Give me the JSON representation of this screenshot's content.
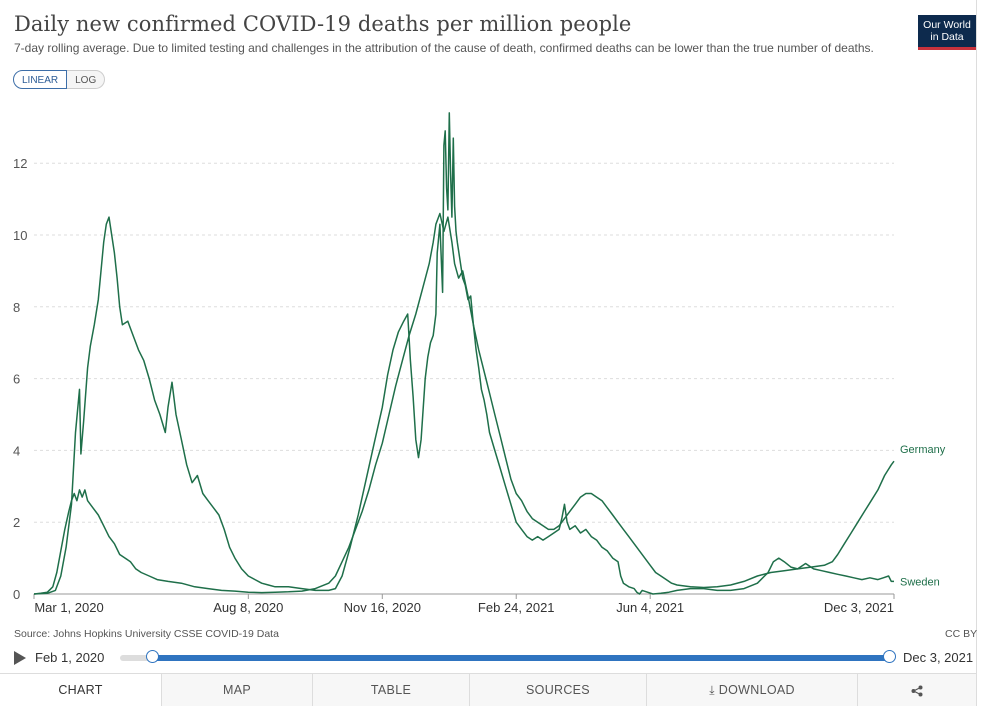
{
  "header": {
    "title": "Daily new confirmed COVID-19 deaths per million people",
    "subtitle": "7-day rolling average. Due to limited testing and challenges in the attribution of the cause of death, confirmed deaths can be lower than the true number of deaths.",
    "logo_line1": "Our World",
    "logo_line2": "in Data"
  },
  "scale_toggle": {
    "linear": "LINEAR",
    "log": "LOG"
  },
  "footer": {
    "source": "Source: Johns Hopkins University CSSE COVID-19 Data",
    "license": "CC BY"
  },
  "timeline": {
    "start_label": "Feb 1, 2020",
    "end_label": "Dec 3, 2021",
    "start_fraction": 0.042,
    "end_fraction": 1.0
  },
  "tabs": {
    "chart": "CHART",
    "map": "MAP",
    "table": "TABLE",
    "sources": "SOURCES",
    "download": "DOWNLOAD"
  },
  "colors": {
    "line": "#1f6f4a",
    "accent": "#2f74c0",
    "logo_bg": "#0d2a4d",
    "logo_bar": "#c8323c"
  },
  "chart_data": {
    "type": "line",
    "title": "Daily new confirmed COVID-19 deaths per million people",
    "xlabel": "",
    "ylabel": "",
    "x_ticks": [
      "Mar 1, 2020",
      "Aug 8, 2020",
      "Nov 16, 2020",
      "Feb 24, 2021",
      "Jun 4, 2021",
      "Dec 3, 2021"
    ],
    "y_ticks": [
      0,
      2,
      4,
      6,
      8,
      10,
      12
    ],
    "ylim": [
      0,
      13.5
    ],
    "x_unit": "days since Mar 1, 2020",
    "xlim": [
      0,
      642
    ],
    "series": [
      {
        "name": "Germany",
        "points": [
          [
            0,
            0
          ],
          [
            5,
            0.02
          ],
          [
            10,
            0.05
          ],
          [
            14,
            0.2
          ],
          [
            17,
            0.6
          ],
          [
            20,
            1.2
          ],
          [
            23,
            1.8
          ],
          [
            26,
            2.3
          ],
          [
            28,
            2.6
          ],
          [
            30,
            2.8
          ],
          [
            32,
            2.6
          ],
          [
            34,
            2.9
          ],
          [
            36,
            2.7
          ],
          [
            38,
            2.9
          ],
          [
            40,
            2.6
          ],
          [
            44,
            2.4
          ],
          [
            48,
            2.2
          ],
          [
            52,
            1.9
          ],
          [
            56,
            1.6
          ],
          [
            60,
            1.4
          ],
          [
            64,
            1.1
          ],
          [
            68,
            1.0
          ],
          [
            72,
            0.9
          ],
          [
            76,
            0.7
          ],
          [
            80,
            0.6
          ],
          [
            86,
            0.5
          ],
          [
            92,
            0.4
          ],
          [
            100,
            0.35
          ],
          [
            110,
            0.3
          ],
          [
            120,
            0.2
          ],
          [
            130,
            0.15
          ],
          [
            140,
            0.1
          ],
          [
            150,
            0.08
          ],
          [
            160,
            0.05
          ],
          [
            170,
            0.04
          ],
          [
            180,
            0.05
          ],
          [
            190,
            0.06
          ],
          [
            200,
            0.08
          ],
          [
            210,
            0.15
          ],
          [
            220,
            0.3
          ],
          [
            225,
            0.5
          ],
          [
            230,
            0.9
          ],
          [
            235,
            1.3
          ],
          [
            240,
            1.8
          ],
          [
            245,
            2.3
          ],
          [
            250,
            2.9
          ],
          [
            255,
            3.6
          ],
          [
            260,
            4.2
          ],
          [
            265,
            5.0
          ],
          [
            270,
            5.8
          ],
          [
            275,
            6.5
          ],
          [
            280,
            7.2
          ],
          [
            285,
            7.8
          ],
          [
            290,
            8.5
          ],
          [
            295,
            9.2
          ],
          [
            298,
            9.8
          ],
          [
            300,
            10.3
          ],
          [
            303,
            10.6
          ],
          [
            306,
            10.1
          ],
          [
            309,
            10.5
          ],
          [
            312,
            9.8
          ],
          [
            314,
            9.2
          ],
          [
            317,
            8.8
          ],
          [
            320,
            9.0
          ],
          [
            324,
            8.3
          ],
          [
            328,
            7.5
          ],
          [
            332,
            6.8
          ],
          [
            336,
            6.2
          ],
          [
            340,
            5.6
          ],
          [
            344,
            5.0
          ],
          [
            348,
            4.4
          ],
          [
            352,
            3.8
          ],
          [
            356,
            3.2
          ],
          [
            360,
            2.8
          ],
          [
            364,
            2.6
          ],
          [
            368,
            2.3
          ],
          [
            372,
            2.1
          ],
          [
            376,
            2.0
          ],
          [
            380,
            1.9
          ],
          [
            384,
            1.8
          ],
          [
            388,
            1.8
          ],
          [
            392,
            1.9
          ],
          [
            396,
            2.1
          ],
          [
            400,
            2.3
          ],
          [
            404,
            2.5
          ],
          [
            408,
            2.7
          ],
          [
            412,
            2.8
          ],
          [
            416,
            2.8
          ],
          [
            420,
            2.7
          ],
          [
            424,
            2.6
          ],
          [
            428,
            2.4
          ],
          [
            432,
            2.2
          ],
          [
            436,
            2.0
          ],
          [
            440,
            1.8
          ],
          [
            444,
            1.6
          ],
          [
            448,
            1.4
          ],
          [
            452,
            1.2
          ],
          [
            456,
            1.0
          ],
          [
            460,
            0.8
          ],
          [
            464,
            0.6
          ],
          [
            468,
            0.5
          ],
          [
            472,
            0.4
          ],
          [
            476,
            0.3
          ],
          [
            480,
            0.25
          ],
          [
            490,
            0.2
          ],
          [
            500,
            0.18
          ],
          [
            510,
            0.2
          ],
          [
            520,
            0.25
          ],
          [
            530,
            0.35
          ],
          [
            540,
            0.5
          ],
          [
            550,
            0.6
          ],
          [
            560,
            0.65
          ],
          [
            570,
            0.7
          ],
          [
            580,
            0.75
          ],
          [
            590,
            0.8
          ],
          [
            596,
            0.9
          ],
          [
            600,
            1.1
          ],
          [
            605,
            1.4
          ],
          [
            610,
            1.7
          ],
          [
            615,
            2.0
          ],
          [
            620,
            2.3
          ],
          [
            625,
            2.6
          ],
          [
            630,
            2.9
          ],
          [
            635,
            3.3
          ],
          [
            640,
            3.6
          ],
          [
            642,
            3.7
          ]
        ]
      },
      {
        "name": "Sweden",
        "points": [
          [
            0,
            0
          ],
          [
            10,
            0.02
          ],
          [
            16,
            0.1
          ],
          [
            20,
            0.5
          ],
          [
            24,
            1.3
          ],
          [
            28,
            2.5
          ],
          [
            31,
            4.5
          ],
          [
            34,
            5.7
          ],
          [
            35,
            3.9
          ],
          [
            37,
            4.8
          ],
          [
            40,
            6.3
          ],
          [
            42,
            6.9
          ],
          [
            45,
            7.5
          ],
          [
            48,
            8.2
          ],
          [
            50,
            9.0
          ],
          [
            52,
            9.8
          ],
          [
            54,
            10.3
          ],
          [
            56,
            10.5
          ],
          [
            58,
            10.0
          ],
          [
            60,
            9.5
          ],
          [
            62,
            8.8
          ],
          [
            64,
            8.0
          ],
          [
            66,
            7.5
          ],
          [
            70,
            7.6
          ],
          [
            74,
            7.2
          ],
          [
            78,
            6.8
          ],
          [
            82,
            6.5
          ],
          [
            86,
            6.0
          ],
          [
            90,
            5.4
          ],
          [
            94,
            5.0
          ],
          [
            98,
            4.5
          ],
          [
            100,
            5.2
          ],
          [
            103,
            5.9
          ],
          [
            106,
            5.0
          ],
          [
            110,
            4.3
          ],
          [
            114,
            3.6
          ],
          [
            118,
            3.1
          ],
          [
            122,
            3.3
          ],
          [
            126,
            2.8
          ],
          [
            130,
            2.6
          ],
          [
            134,
            2.4
          ],
          [
            138,
            2.2
          ],
          [
            142,
            1.8
          ],
          [
            146,
            1.3
          ],
          [
            150,
            1.0
          ],
          [
            155,
            0.7
          ],
          [
            160,
            0.5
          ],
          [
            165,
            0.4
          ],
          [
            170,
            0.3
          ],
          [
            175,
            0.25
          ],
          [
            180,
            0.2
          ],
          [
            190,
            0.2
          ],
          [
            200,
            0.15
          ],
          [
            210,
            0.1
          ],
          [
            220,
            0.1
          ],
          [
            225,
            0.15
          ],
          [
            230,
            0.5
          ],
          [
            236,
            1.3
          ],
          [
            242,
            2.2
          ],
          [
            248,
            3.2
          ],
          [
            254,
            4.2
          ],
          [
            260,
            5.2
          ],
          [
            264,
            6.1
          ],
          [
            268,
            6.8
          ],
          [
            272,
            7.3
          ],
          [
            276,
            7.6
          ],
          [
            279,
            7.8
          ],
          [
            281,
            6.5
          ],
          [
            283,
            5.5
          ],
          [
            285,
            4.3
          ],
          [
            287,
            3.8
          ],
          [
            289,
            4.3
          ],
          [
            292,
            6.0
          ],
          [
            294,
            6.6
          ],
          [
            296,
            7.0
          ],
          [
            298,
            7.2
          ],
          [
            300,
            7.8
          ],
          [
            301,
            9.5
          ],
          [
            303,
            10.3
          ],
          [
            305,
            8.4
          ],
          [
            306,
            12.5
          ],
          [
            307,
            12.9
          ],
          [
            308,
            11.3
          ],
          [
            309,
            10.7
          ],
          [
            310,
            13.4
          ],
          [
            311,
            11.7
          ],
          [
            312,
            10.5
          ],
          [
            313,
            12.7
          ],
          [
            314,
            10.8
          ],
          [
            315,
            10.1
          ],
          [
            316,
            9.8
          ],
          [
            318,
            9.3
          ],
          [
            320,
            8.8
          ],
          [
            322,
            8.6
          ],
          [
            324,
            8.2
          ],
          [
            326,
            8.3
          ],
          [
            328,
            7.5
          ],
          [
            330,
            6.8
          ],
          [
            332,
            6.3
          ],
          [
            334,
            5.7
          ],
          [
            336,
            5.4
          ],
          [
            338,
            5.0
          ],
          [
            340,
            4.5
          ],
          [
            344,
            4.0
          ],
          [
            348,
            3.5
          ],
          [
            352,
            3.0
          ],
          [
            356,
            2.5
          ],
          [
            360,
            2.0
          ],
          [
            364,
            1.8
          ],
          [
            368,
            1.6
          ],
          [
            372,
            1.5
          ],
          [
            376,
            1.6
          ],
          [
            380,
            1.5
          ],
          [
            384,
            1.6
          ],
          [
            388,
            1.7
          ],
          [
            392,
            1.8
          ],
          [
            394,
            2.1
          ],
          [
            396,
            2.5
          ],
          [
            398,
            2.0
          ],
          [
            400,
            1.8
          ],
          [
            404,
            1.9
          ],
          [
            408,
            1.7
          ],
          [
            412,
            1.8
          ],
          [
            416,
            1.6
          ],
          [
            420,
            1.5
          ],
          [
            424,
            1.3
          ],
          [
            428,
            1.2
          ],
          [
            432,
            1.0
          ],
          [
            436,
            0.9
          ],
          [
            438,
            0.5
          ],
          [
            440,
            0.3
          ],
          [
            444,
            0.2
          ],
          [
            448,
            0.15
          ],
          [
            450,
            0.05
          ],
          [
            452,
            0.0
          ],
          [
            454,
            0.1
          ],
          [
            458,
            0.05
          ],
          [
            462,
            0.0
          ],
          [
            468,
            0.02
          ],
          [
            474,
            0.05
          ],
          [
            480,
            0.1
          ],
          [
            490,
            0.15
          ],
          [
            500,
            0.15
          ],
          [
            510,
            0.1
          ],
          [
            520,
            0.1
          ],
          [
            530,
            0.15
          ],
          [
            540,
            0.3
          ],
          [
            548,
            0.6
          ],
          [
            552,
            0.9
          ],
          [
            556,
            1.0
          ],
          [
            560,
            0.9
          ],
          [
            565,
            0.75
          ],
          [
            570,
            0.7
          ],
          [
            576,
            0.85
          ],
          [
            582,
            0.7
          ],
          [
            588,
            0.65
          ],
          [
            594,
            0.6
          ],
          [
            600,
            0.55
          ],
          [
            606,
            0.5
          ],
          [
            612,
            0.45
          ],
          [
            618,
            0.4
          ],
          [
            624,
            0.45
          ],
          [
            630,
            0.4
          ],
          [
            634,
            0.45
          ],
          [
            638,
            0.5
          ],
          [
            640,
            0.35
          ],
          [
            642,
            0.35
          ]
        ]
      }
    ]
  }
}
